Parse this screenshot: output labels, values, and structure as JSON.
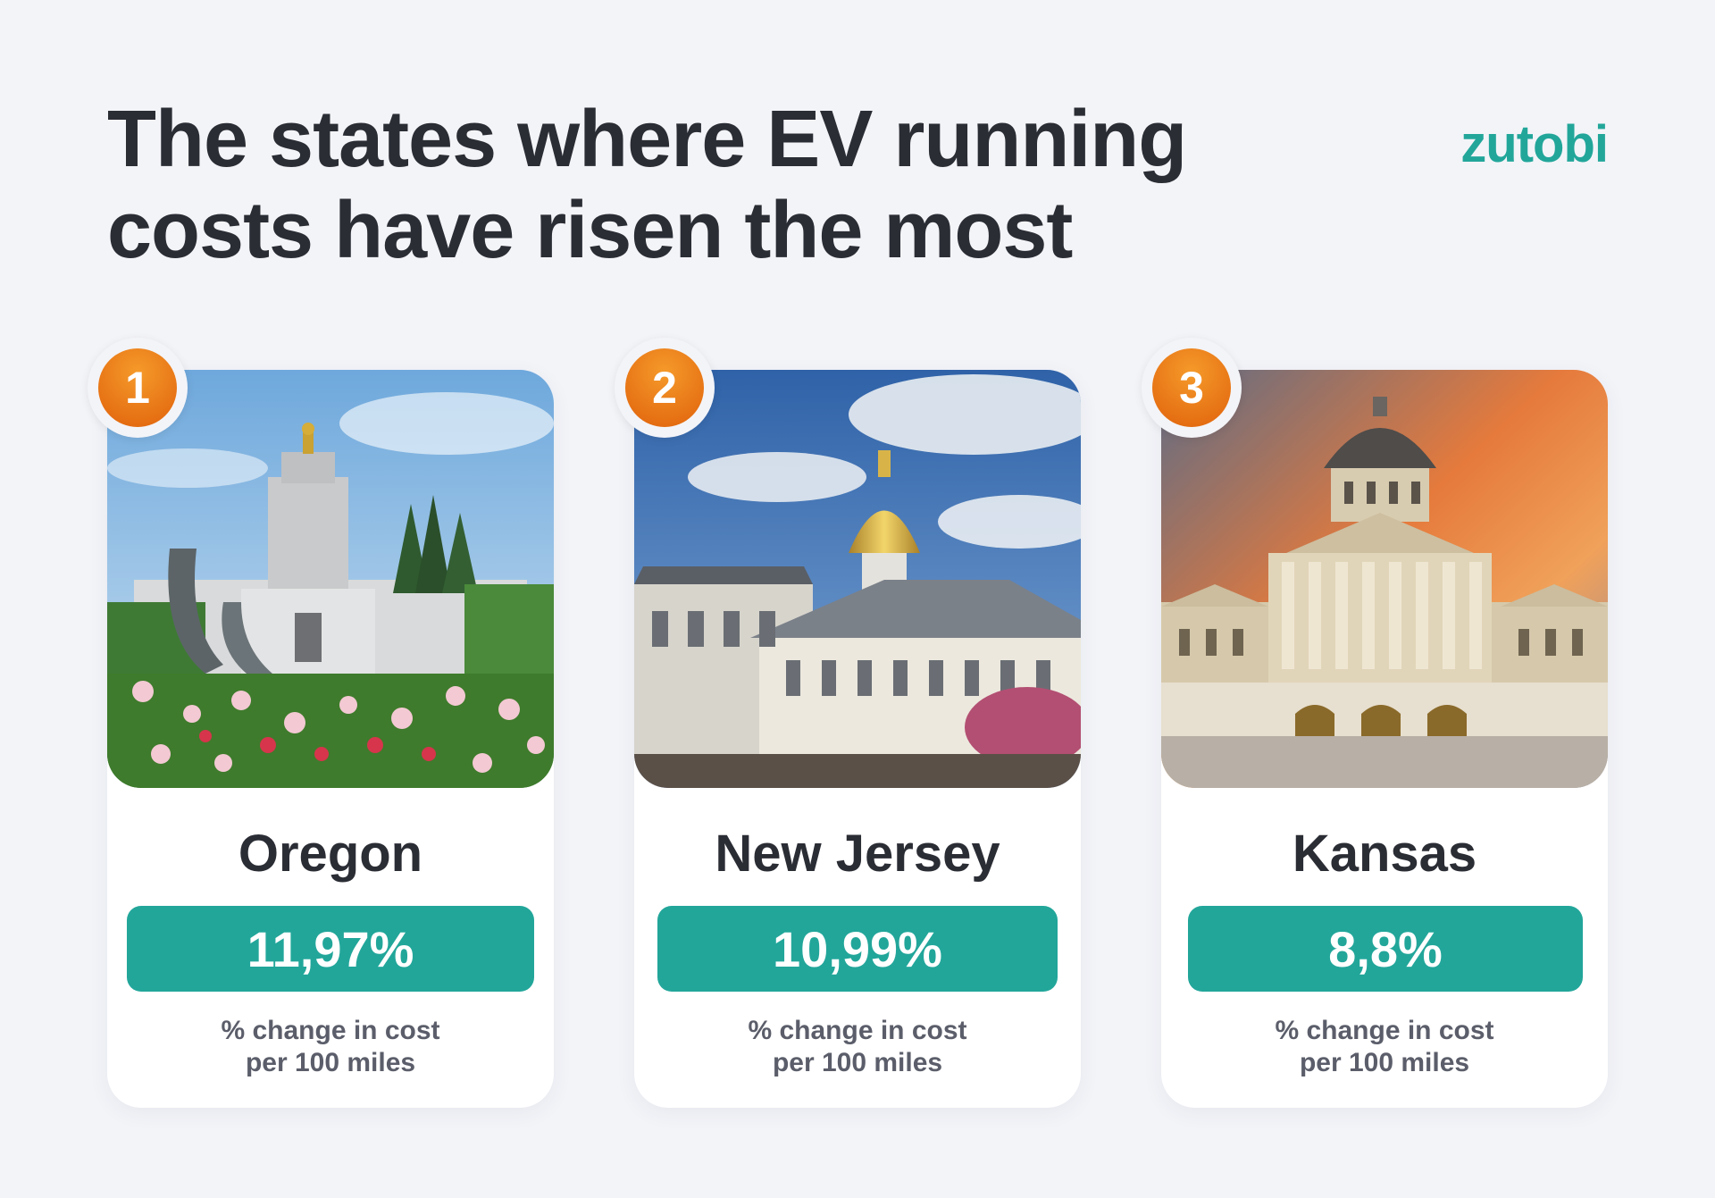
{
  "header": {
    "title_line1": "The states where EV running",
    "title_line2": "costs have risen the most",
    "logo": "zutobi"
  },
  "cards": [
    {
      "rank": "1",
      "state": "Oregon",
      "value": "11,97%",
      "caption_line1": "% change in cost",
      "caption_line2": "per 100 miles"
    },
    {
      "rank": "2",
      "state": "New Jersey",
      "value": "10,99%",
      "caption_line1": "% change in cost",
      "caption_line2": "per 100 miles"
    },
    {
      "rank": "3",
      "state": "Kansas",
      "value": "8,8%",
      "caption_line1": "% change in cost",
      "caption_line2": "per 100 miles"
    }
  ],
  "colors": {
    "accent": "#22a69a",
    "rank_badge": "#e8760f",
    "background": "#f3f4f8",
    "text_dark": "#2b2d35"
  }
}
